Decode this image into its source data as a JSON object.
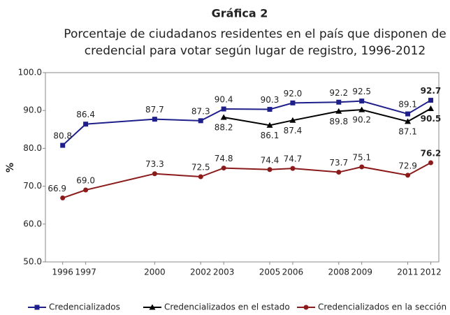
{
  "chart_data": {
    "type": "line",
    "title": "Gráfica 2",
    "subtitle": [
      "Porcentaje de ciudadanos residentes en el país que disponen de",
      "credencial para votar según lugar de registro, 1996-2012"
    ],
    "ylabel": "%",
    "x": [
      1996,
      1997,
      2000,
      2002,
      2003,
      2005,
      2006,
      2008,
      2009,
      2011,
      2012
    ],
    "xlim": [
      1995.25,
      2012.35
    ],
    "xticks": [
      1996,
      1997,
      2000,
      2002,
      2003,
      2005,
      2006,
      2008,
      2009,
      2011,
      2012
    ],
    "ylim": [
      50,
      100
    ],
    "yticks": [
      {
        "value": 50,
        "label": "50.0"
      },
      {
        "value": 60,
        "label": "60.0"
      },
      {
        "value": 70,
        "label": "70.0"
      },
      {
        "value": 80,
        "label": "80.0"
      },
      {
        "value": 90,
        "label": "90.0"
      },
      {
        "value": 100,
        "label": "100.0"
      }
    ],
    "grid": false,
    "legend": "bottom",
    "series": [
      {
        "name": "Credencializados",
        "color": "#1f1f8c",
        "marker": "square",
        "values": [
          80.8,
          86.4,
          87.7,
          87.3,
          90.4,
          90.3,
          92.0,
          92.2,
          92.5,
          89.1,
          92.7
        ],
        "value_labels": [
          "80.8",
          "86.4",
          "87.7",
          "87.3",
          "90.4",
          "90.3",
          "92.0",
          "92.2",
          "92.5",
          "89.1",
          "92.7"
        ]
      },
      {
        "name": "Credencializados en el estado",
        "color": "#000000",
        "marker": "triangle",
        "values": [
          null,
          null,
          null,
          null,
          88.2,
          86.1,
          87.4,
          89.8,
          90.2,
          87.1,
          90.5
        ],
        "value_labels": [
          null,
          null,
          null,
          null,
          "88.2",
          "86.1",
          "87.4",
          "89.8",
          "90.2",
          "87.1",
          "90.5"
        ]
      },
      {
        "name": "Credencializados en la sección",
        "color": "#8b1a1a",
        "marker": "circle",
        "values": [
          66.9,
          69.0,
          73.3,
          72.5,
          74.8,
          74.4,
          74.7,
          73.7,
          75.1,
          72.9,
          76.2
        ],
        "value_labels": [
          "66.9",
          "69.0",
          "73.3",
          "72.5",
          "74.8",
          "74.4",
          "74.7",
          "73.7",
          "75.1",
          "72.9",
          "76.2"
        ]
      }
    ]
  }
}
